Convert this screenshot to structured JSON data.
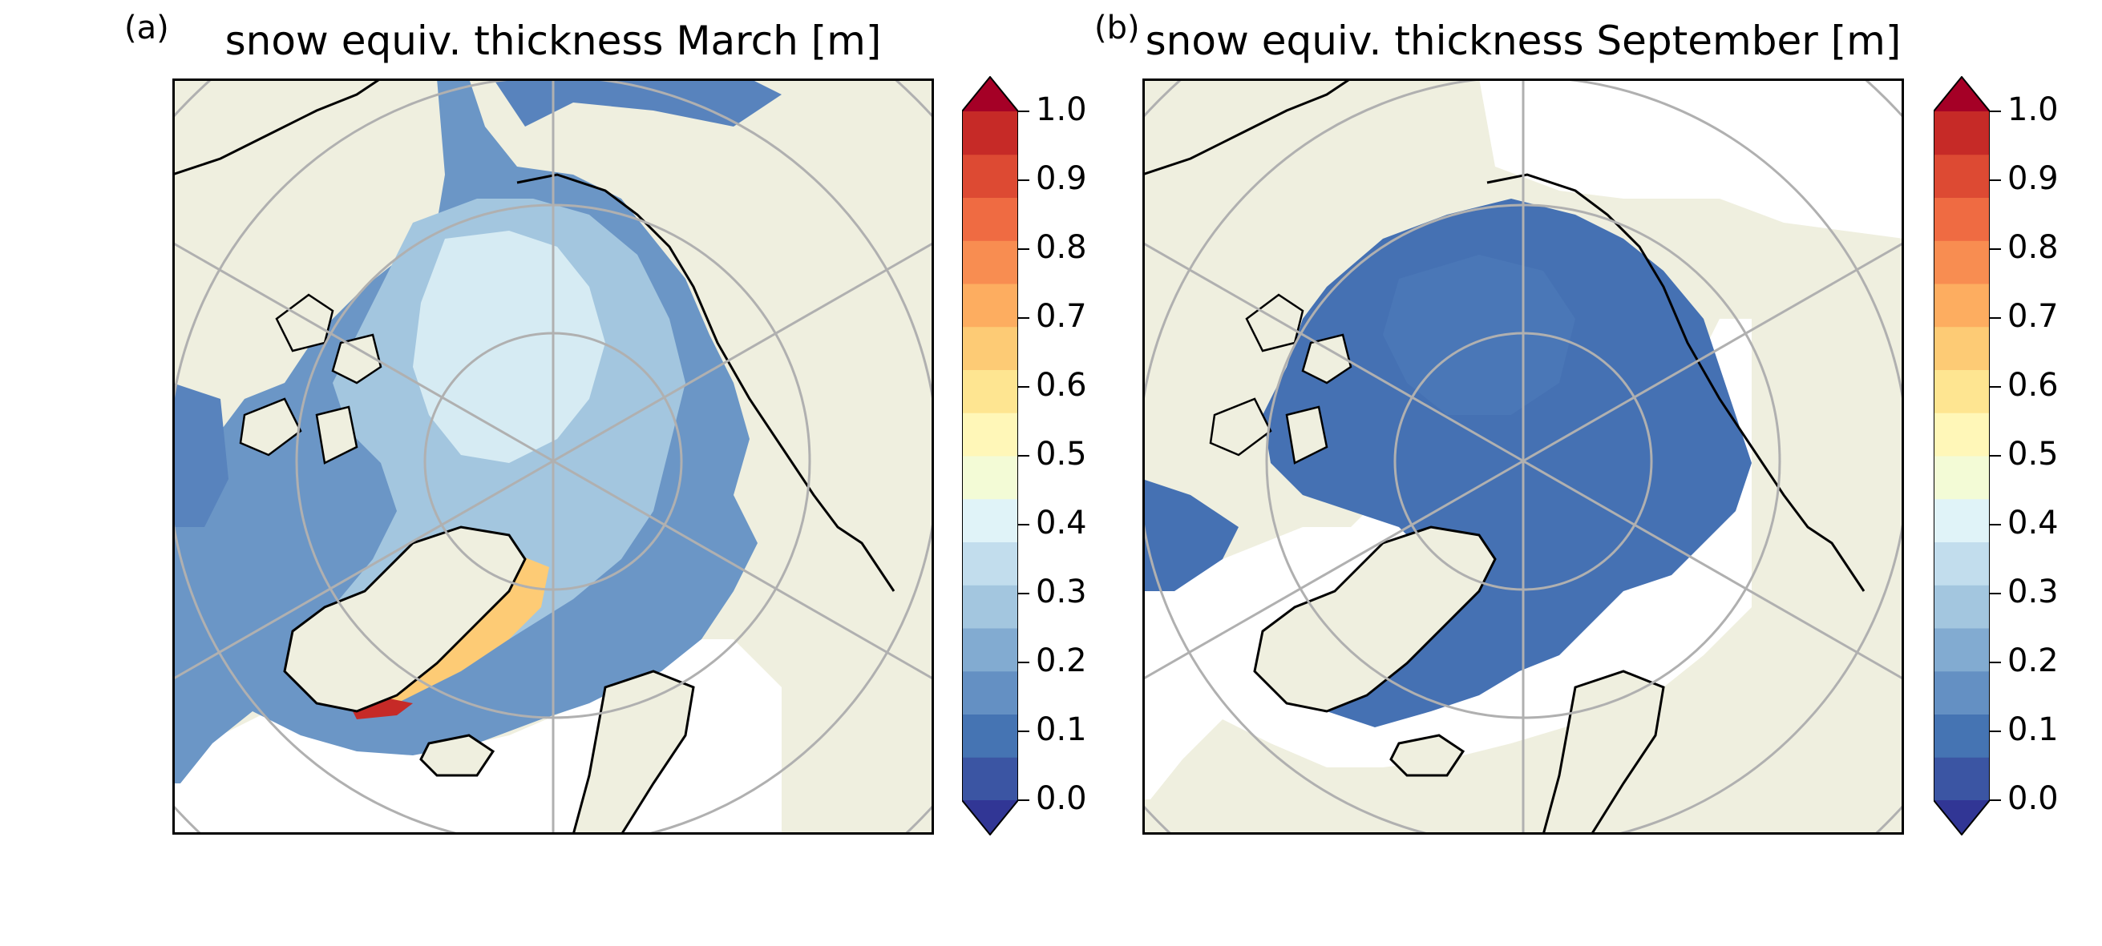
{
  "panels": [
    {
      "label": "(a)",
      "title": "snow equiv. thickness March [m]"
    },
    {
      "label": "(b)",
      "title": "snow equiv. thickness September [m]"
    }
  ],
  "colorbar": {
    "ticks": [
      "0.0",
      "0.1",
      "0.2",
      "0.3",
      "0.4",
      "0.5",
      "0.6",
      "0.7",
      "0.8",
      "0.9",
      "1.0"
    ],
    "colors": [
      "#313695",
      "#3b55a3",
      "#4574b3",
      "#6490c3",
      "#82abd1",
      "#a3c6df",
      "#c2dded",
      "#e0f3f8",
      "#f3fbd6",
      "#fff7b8",
      "#fee591",
      "#fdcb75",
      "#fdad60",
      "#f88d51",
      "#ef6b42",
      "#dd4a33",
      "#c62a27",
      "#a50026"
    ],
    "min": 0.0,
    "max": 1.0,
    "extend": "both"
  },
  "map_colors": {
    "land": "#efefdf",
    "ocean": "#ffffff",
    "grid": "#b0b0b0",
    "coast": "#000000"
  }
}
